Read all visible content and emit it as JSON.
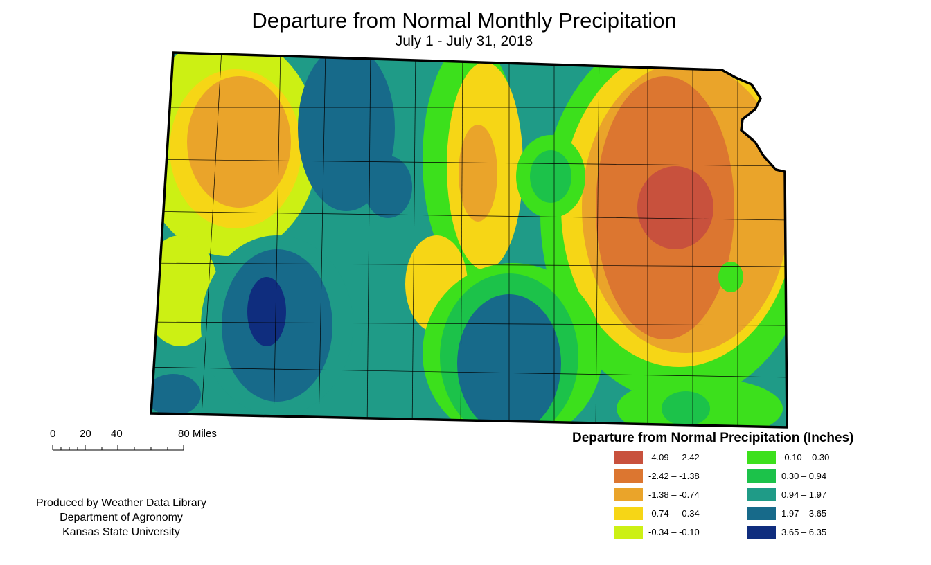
{
  "title": "Departure from Normal Monthly Precipitation",
  "subtitle": "July 1 - July 31, 2018",
  "scale_bar": {
    "ticks": [
      "0",
      "20",
      "40",
      "80 Miles"
    ]
  },
  "credits": [
    "Produced by Weather Data Library",
    "Department of Agronomy",
    "Kansas State University"
  ],
  "legend": {
    "title": "Departure from Normal Precipitation (Inches)",
    "items": [
      {
        "range": "-4.09 – -2.42",
        "color": "#c8513d"
      },
      {
        "range": "-2.42 – -1.38",
        "color": "#dc7630"
      },
      {
        "range": "-1.38 – -0.74",
        "color": "#eaa42a"
      },
      {
        "range": "-0.74 – -0.34",
        "color": "#f6d616"
      },
      {
        "range": "-0.34 – -0.10",
        "color": "#ccf014"
      },
      {
        "range": "-0.10 – 0.30",
        "color": "#3ce01c"
      },
      {
        "range": "0.30 – 0.94",
        "color": "#1cc24a"
      },
      {
        "range": "0.94 – 1.97",
        "color": "#1f9b87"
      },
      {
        "range": "1.97 – 3.65",
        "color": "#176a8a"
      },
      {
        "range": "3.65 – 6.35",
        "color": "#0f2d7e"
      }
    ]
  }
}
